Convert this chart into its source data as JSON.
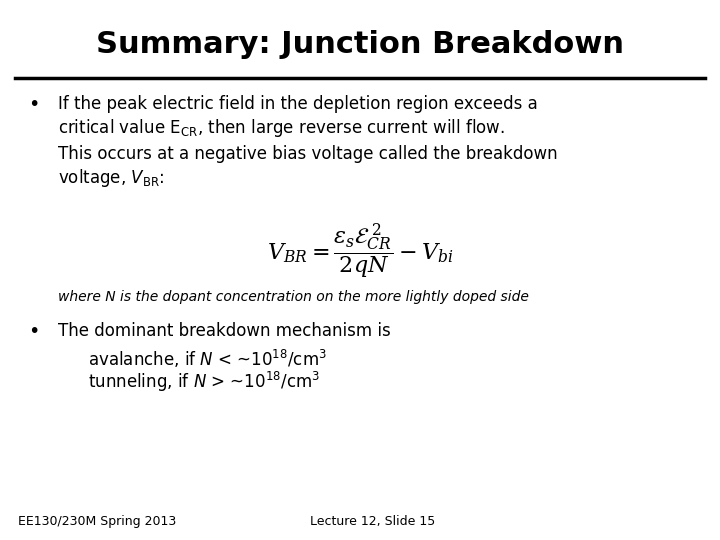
{
  "title": "Summary: Junction Breakdown",
  "background_color": "#ffffff",
  "title_fontsize": 22,
  "title_fontweight": "bold",
  "text_fontsize": 12,
  "small_fontsize": 10,
  "footer_fontsize": 9,
  "bullet_char": "•",
  "footer_left": "EE130/230M Spring 2013",
  "footer_right": "Lecture 12, Slide 15"
}
